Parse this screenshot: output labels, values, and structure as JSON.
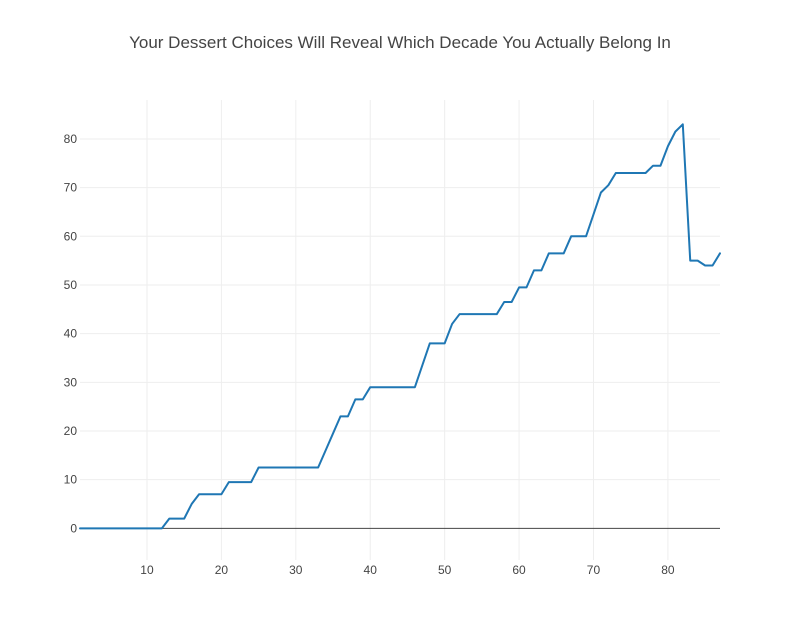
{
  "chart_data": {
    "type": "line",
    "title": "Your Dessert Choices Will Reveal Which Decade You Actually Belong In",
    "xlabel": "",
    "ylabel": "",
    "xlim": [
      1,
      87
    ],
    "ylim": [
      -6.5,
      88
    ],
    "x_ticks": [
      10,
      20,
      30,
      40,
      50,
      60,
      70,
      80
    ],
    "y_ticks": [
      0,
      10,
      20,
      30,
      40,
      50,
      60,
      70,
      80
    ],
    "grid": true,
    "colors": {
      "line": "#1f77b4",
      "grid": "#eeeeee",
      "zeroline": "#444444",
      "text": "#444444"
    },
    "series": [
      {
        "x": [
          1,
          2,
          3,
          4,
          5,
          6,
          7,
          8,
          9,
          10,
          11,
          12,
          13,
          14,
          15,
          16,
          17,
          18,
          19,
          20,
          21,
          22,
          23,
          24,
          25,
          26,
          27,
          28,
          29,
          30,
          31,
          32,
          33,
          34,
          35,
          36,
          37,
          38,
          39,
          40,
          41,
          42,
          43,
          44,
          45,
          46,
          47,
          48,
          49,
          50,
          51,
          52,
          53,
          54,
          55,
          56,
          57,
          58,
          59,
          60,
          61,
          62,
          63,
          64,
          65,
          66,
          67,
          68,
          69,
          70,
          71,
          72,
          73,
          74,
          75,
          76,
          77,
          78,
          79,
          80,
          81,
          82,
          83,
          84,
          85,
          86,
          87
        ],
        "y": [
          0,
          0,
          0,
          0,
          0,
          0,
          0,
          0,
          0,
          0,
          0,
          0,
          2,
          2,
          2,
          5,
          7,
          7,
          7,
          7,
          9.5,
          9.5,
          9.5,
          9.5,
          12.5,
          12.5,
          12.5,
          12.5,
          12.5,
          12.5,
          12.5,
          12.5,
          12.5,
          16,
          19.5,
          23,
          23,
          26.5,
          26.5,
          29,
          29,
          29,
          29,
          29,
          29,
          29,
          33.5,
          38,
          38,
          38,
          42,
          44,
          44,
          44,
          44,
          44,
          44,
          46.5,
          46.5,
          49.5,
          49.5,
          53,
          53,
          56.5,
          56.5,
          56.5,
          60,
          60,
          60,
          64.5,
          69,
          70.5,
          73,
          73,
          73,
          73,
          73,
          74.5,
          74.5,
          78.5,
          81.5,
          83,
          55,
          55,
          54,
          54,
          56.5
        ]
      }
    ]
  }
}
